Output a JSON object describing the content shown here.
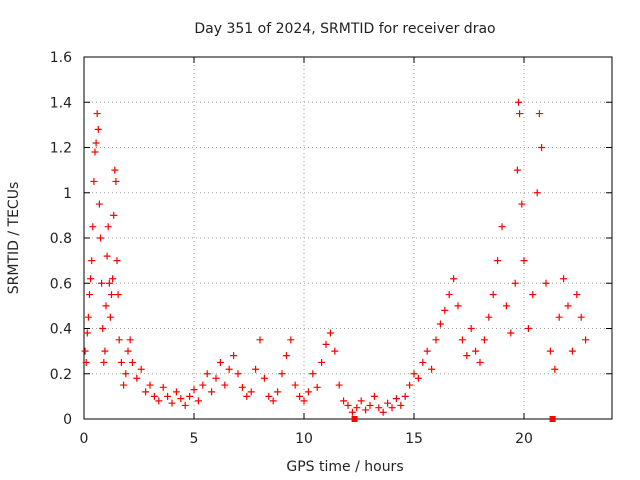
{
  "chart_data": {
    "type": "scatter",
    "title": "Day 351 of 2024, SRMTID for receiver drao",
    "xlabel": "GPS time / hours",
    "ylabel": "SRMTID / TECUs",
    "xlim": [
      0,
      24
    ],
    "ylim": [
      0,
      1.6
    ],
    "xticks": [
      0,
      5,
      10,
      15,
      20
    ],
    "xtick_labels": [
      "0",
      "5",
      "10",
      "15",
      "20"
    ],
    "yticks": [
      0,
      0.2,
      0.4,
      0.6,
      0.8,
      1.0,
      1.2,
      1.4,
      1.6
    ],
    "ytick_labels": [
      "0",
      "0.2",
      "0.4",
      "0.6",
      "0.8",
      "1",
      "1.2",
      "1.4",
      "1.6"
    ],
    "grid": true,
    "marker": "plus",
    "color": "#ff0000",
    "series": [
      {
        "name": "SRMTID",
        "points": [
          [
            0.05,
            0.3
          ],
          [
            0.1,
            0.25
          ],
          [
            0.15,
            0.38
          ],
          [
            0.2,
            0.45
          ],
          [
            0.25,
            0.55
          ],
          [
            0.3,
            0.62
          ],
          [
            0.35,
            0.7
          ],
          [
            0.4,
            0.85
          ],
          [
            0.45,
            1.05
          ],
          [
            0.5,
            1.18
          ],
          [
            0.55,
            1.22
          ],
          [
            0.6,
            1.35
          ],
          [
            0.65,
            1.28
          ],
          [
            0.7,
            0.95
          ],
          [
            0.75,
            0.8
          ],
          [
            0.8,
            0.6
          ],
          [
            0.85,
            0.4
          ],
          [
            0.9,
            0.25
          ],
          [
            0.95,
            0.3
          ],
          [
            1.0,
            0.5
          ],
          [
            1.05,
            0.72
          ],
          [
            1.1,
            0.85
          ],
          [
            1.15,
            0.6
          ],
          [
            1.2,
            0.45
          ],
          [
            1.25,
            0.55
          ],
          [
            1.3,
            0.62
          ],
          [
            1.35,
            0.9
          ],
          [
            1.4,
            1.1
          ],
          [
            1.45,
            1.05
          ],
          [
            1.5,
            0.7
          ],
          [
            1.55,
            0.55
          ],
          [
            1.6,
            0.35
          ],
          [
            1.7,
            0.25
          ],
          [
            1.8,
            0.15
          ],
          [
            1.9,
            0.2
          ],
          [
            2.0,
            0.3
          ],
          [
            2.1,
            0.35
          ],
          [
            2.2,
            0.25
          ],
          [
            2.4,
            0.18
          ],
          [
            2.6,
            0.22
          ],
          [
            2.8,
            0.12
          ],
          [
            3.0,
            0.15
          ],
          [
            3.2,
            0.1
          ],
          [
            3.4,
            0.08
          ],
          [
            3.6,
            0.14
          ],
          [
            3.8,
            0.1
          ],
          [
            4.0,
            0.07
          ],
          [
            4.2,
            0.12
          ],
          [
            4.4,
            0.09
          ],
          [
            4.6,
            0.06
          ],
          [
            4.8,
            0.1
          ],
          [
            5.0,
            0.13
          ],
          [
            5.2,
            0.08
          ],
          [
            5.4,
            0.15
          ],
          [
            5.6,
            0.2
          ],
          [
            5.8,
            0.12
          ],
          [
            6.0,
            0.18
          ],
          [
            6.2,
            0.25
          ],
          [
            6.4,
            0.15
          ],
          [
            6.6,
            0.22
          ],
          [
            6.8,
            0.28
          ],
          [
            7.0,
            0.2
          ],
          [
            7.2,
            0.14
          ],
          [
            7.4,
            0.1
          ],
          [
            7.6,
            0.12
          ],
          [
            7.8,
            0.22
          ],
          [
            8.0,
            0.35
          ],
          [
            8.2,
            0.18
          ],
          [
            8.4,
            0.1
          ],
          [
            8.6,
            0.08
          ],
          [
            8.8,
            0.12
          ],
          [
            9.0,
            0.2
          ],
          [
            9.2,
            0.28
          ],
          [
            9.4,
            0.35
          ],
          [
            9.6,
            0.15
          ],
          [
            9.8,
            0.1
          ],
          [
            10.0,
            0.08
          ],
          [
            10.2,
            0.12
          ],
          [
            10.4,
            0.2
          ],
          [
            10.6,
            0.14
          ],
          [
            10.8,
            0.25
          ],
          [
            11.0,
            0.33
          ],
          [
            11.2,
            0.38
          ],
          [
            11.4,
            0.3
          ],
          [
            11.6,
            0.15
          ],
          [
            11.8,
            0.08
          ],
          [
            12.0,
            0.06
          ],
          [
            12.2,
            0.03
          ],
          [
            12.4,
            0.05
          ],
          [
            12.6,
            0.08
          ],
          [
            12.8,
            0.04
          ],
          [
            13.0,
            0.06
          ],
          [
            13.2,
            0.1
          ],
          [
            13.4,
            0.05
          ],
          [
            13.6,
            0.03
          ],
          [
            13.8,
            0.07
          ],
          [
            14.0,
            0.05
          ],
          [
            14.2,
            0.09
          ],
          [
            14.4,
            0.06
          ],
          [
            14.6,
            0.1
          ],
          [
            14.8,
            0.15
          ],
          [
            15.0,
            0.2
          ],
          [
            15.2,
            0.18
          ],
          [
            15.4,
            0.25
          ],
          [
            15.6,
            0.3
          ],
          [
            15.8,
            0.22
          ],
          [
            16.0,
            0.35
          ],
          [
            16.2,
            0.42
          ],
          [
            16.4,
            0.48
          ],
          [
            16.6,
            0.55
          ],
          [
            16.8,
            0.62
          ],
          [
            17.0,
            0.5
          ],
          [
            17.2,
            0.35
          ],
          [
            17.4,
            0.28
          ],
          [
            17.6,
            0.4
          ],
          [
            17.8,
            0.3
          ],
          [
            18.0,
            0.25
          ],
          [
            18.2,
            0.35
          ],
          [
            18.4,
            0.45
          ],
          [
            18.6,
            0.55
          ],
          [
            18.8,
            0.7
          ],
          [
            19.0,
            0.85
          ],
          [
            19.2,
            0.5
          ],
          [
            19.4,
            0.38
          ],
          [
            19.6,
            0.6
          ],
          [
            19.7,
            1.1
          ],
          [
            19.75,
            1.4
          ],
          [
            19.8,
            1.35
          ],
          [
            19.9,
            0.95
          ],
          [
            20.0,
            0.7
          ],
          [
            20.2,
            0.4
          ],
          [
            20.4,
            0.55
          ],
          [
            20.6,
            1.0
          ],
          [
            20.7,
            1.35
          ],
          [
            20.8,
            1.2
          ],
          [
            21.0,
            0.6
          ],
          [
            21.2,
            0.3
          ],
          [
            21.4,
            0.22
          ],
          [
            21.6,
            0.45
          ],
          [
            21.8,
            0.62
          ],
          [
            22.0,
            0.5
          ],
          [
            22.2,
            0.3
          ],
          [
            22.4,
            0.55
          ],
          [
            22.6,
            0.45
          ],
          [
            22.8,
            0.35
          ]
        ]
      }
    ],
    "zero_markers": [
      {
        "x": 12.3,
        "y": 0.0
      },
      {
        "x": 21.3,
        "y": 0.0
      }
    ]
  }
}
